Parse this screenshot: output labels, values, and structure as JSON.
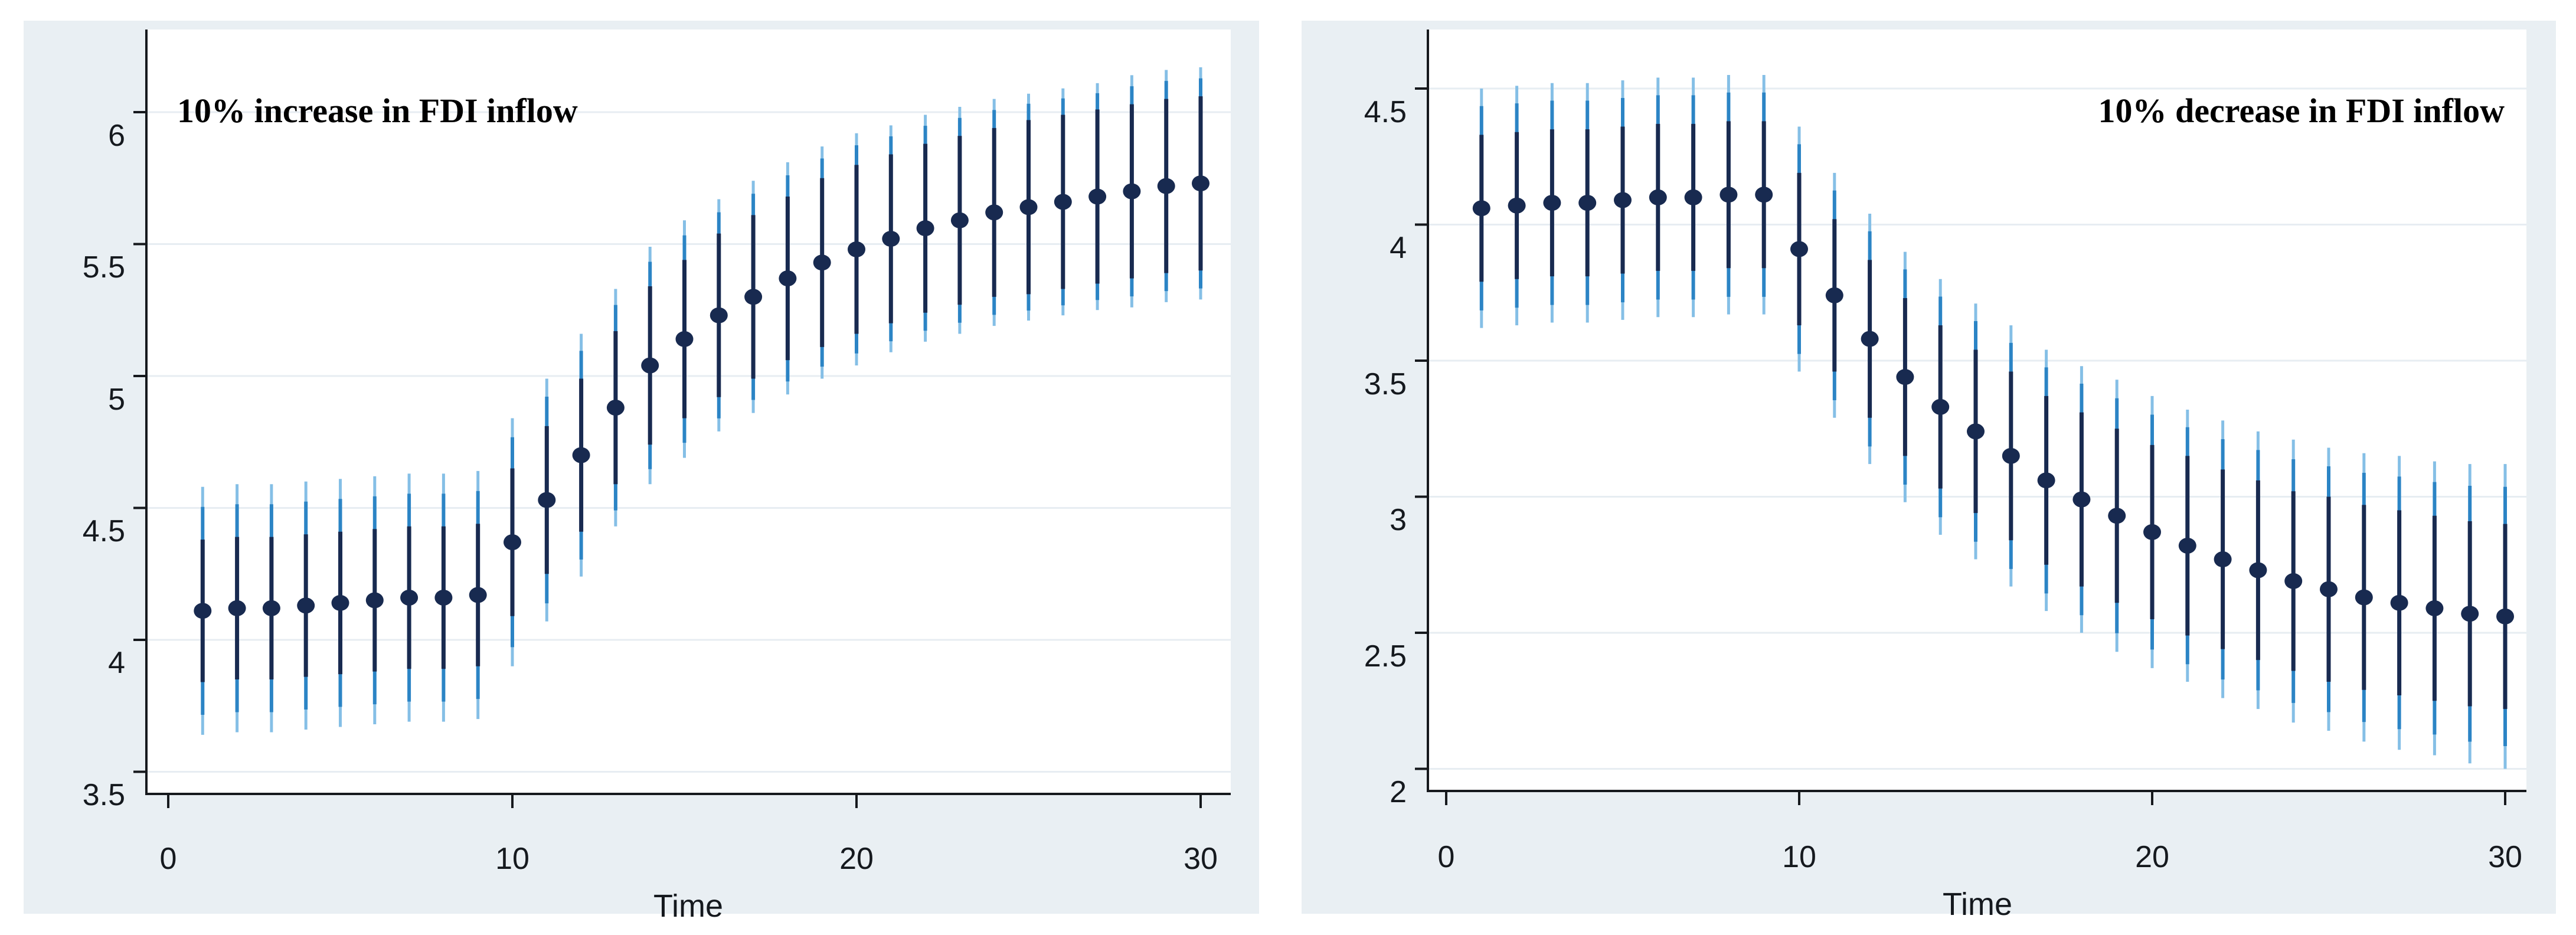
{
  "figure": {
    "background": "#ffffff",
    "panel_background": "#e9eff3"
  },
  "colors": {
    "dot": "#182a50",
    "inner_bar": "#182a50",
    "mid_bar": "#2b84c5",
    "outer_bar_tip": "#85bfe6",
    "gridline": "#e7edf2",
    "axis": "#16191d",
    "text": "#15191e",
    "plot_background": "#ffffff"
  },
  "chart_data": [
    {
      "type": "scatter",
      "title": "10% increase in FDI inflow",
      "title_align": "left",
      "xlabel": "Time",
      "grid": true,
      "legend": "none",
      "x_tick_labels": [
        "0",
        "10",
        "20",
        "30"
      ],
      "x_tick_values": [
        0,
        10,
        20,
        30
      ],
      "y_tick_labels": [
        "3.5",
        "4",
        "4.5",
        "5",
        "5.5",
        "6"
      ],
      "y_tick_values": [
        3.5,
        4,
        4.5,
        5,
        5.5,
        6
      ],
      "xlim": [
        -0.65,
        30.85
      ],
      "ylim": [
        3.42,
        6.31
      ],
      "x": [
        1,
        2,
        3,
        4,
        5,
        6,
        7,
        8,
        9,
        10,
        11,
        12,
        13,
        14,
        15,
        16,
        17,
        18,
        19,
        20,
        21,
        22,
        23,
        24,
        25,
        26,
        27,
        28,
        29,
        30
      ],
      "values": [
        4.11,
        4.12,
        4.12,
        4.13,
        4.14,
        4.15,
        4.16,
        4.16,
        4.17,
        4.37,
        4.53,
        4.7,
        4.88,
        5.04,
        5.14,
        5.23,
        5.3,
        5.37,
        5.43,
        5.48,
        5.52,
        5.56,
        5.59,
        5.62,
        5.64,
        5.66,
        5.68,
        5.7,
        5.72,
        5.73
      ],
      "inner_ci_low": [
        3.84,
        3.85,
        3.85,
        3.86,
        3.87,
        3.88,
        3.89,
        3.89,
        3.9,
        4.09,
        4.25,
        4.41,
        4.59,
        4.74,
        4.84,
        4.92,
        4.99,
        5.06,
        5.11,
        5.16,
        5.2,
        5.24,
        5.27,
        5.3,
        5.31,
        5.33,
        5.35,
        5.37,
        5.39,
        5.4
      ],
      "inner_ci_high": [
        4.38,
        4.39,
        4.39,
        4.4,
        4.41,
        4.42,
        4.43,
        4.43,
        4.44,
        4.65,
        4.81,
        4.99,
        5.17,
        5.34,
        5.44,
        5.54,
        5.61,
        5.68,
        5.75,
        5.8,
        5.84,
        5.88,
        5.91,
        5.94,
        5.97,
        5.99,
        6.01,
        6.03,
        6.05,
        6.06
      ],
      "outer_ci_low": [
        3.64,
        3.65,
        3.65,
        3.66,
        3.67,
        3.68,
        3.69,
        3.69,
        3.7,
        3.9,
        4.07,
        4.24,
        4.43,
        4.59,
        4.69,
        4.79,
        4.86,
        4.93,
        4.99,
        5.04,
        5.09,
        5.13,
        5.16,
        5.19,
        5.21,
        5.23,
        5.25,
        5.26,
        5.28,
        5.29
      ],
      "outer_ci_high": [
        4.58,
        4.59,
        4.59,
        4.6,
        4.61,
        4.62,
        4.63,
        4.63,
        4.64,
        4.84,
        4.99,
        5.16,
        5.33,
        5.49,
        5.59,
        5.67,
        5.74,
        5.81,
        5.87,
        5.92,
        5.95,
        5.99,
        6.02,
        6.05,
        6.07,
        6.09,
        6.11,
        6.14,
        6.16,
        6.17
      ]
    },
    {
      "type": "scatter",
      "title": "10% decrease in FDI inflow",
      "title_align": "right",
      "xlabel": "Time",
      "grid": true,
      "legend": "none",
      "x_tick_labels": [
        "0",
        "10",
        "20",
        "30"
      ],
      "x_tick_values": [
        0,
        10,
        20,
        30
      ],
      "y_tick_labels": [
        "2",
        "2.5",
        "3",
        "3.5",
        "4",
        "4.5"
      ],
      "y_tick_values": [
        2,
        2.5,
        3,
        3.5,
        4,
        4.5
      ],
      "xlim": [
        -0.65,
        30.85
      ],
      "ylim": [
        1.92,
        4.72
      ],
      "x": [
        1,
        2,
        3,
        4,
        5,
        6,
        7,
        8,
        9,
        10,
        11,
        12,
        13,
        14,
        15,
        16,
        17,
        18,
        19,
        20,
        21,
        22,
        23,
        24,
        25,
        26,
        27,
        28,
        29,
        30
      ],
      "values": [
        4.06,
        4.07,
        4.08,
        4.08,
        4.09,
        4.1,
        4.1,
        4.11,
        4.11,
        3.91,
        3.74,
        3.58,
        3.44,
        3.33,
        3.24,
        3.15,
        3.06,
        2.99,
        2.93,
        2.87,
        2.82,
        2.77,
        2.73,
        2.69,
        2.66,
        2.63,
        2.61,
        2.59,
        2.57,
        2.56
      ],
      "inner_ci_low": [
        3.79,
        3.8,
        3.81,
        3.81,
        3.82,
        3.83,
        3.83,
        3.84,
        3.84,
        3.63,
        3.46,
        3.29,
        3.15,
        3.03,
        2.94,
        2.84,
        2.75,
        2.67,
        2.61,
        2.55,
        2.49,
        2.44,
        2.4,
        2.36,
        2.32,
        2.29,
        2.27,
        2.25,
        2.23,
        2.22
      ],
      "inner_ci_high": [
        4.33,
        4.34,
        4.35,
        4.35,
        4.36,
        4.37,
        4.37,
        4.38,
        4.38,
        4.19,
        4.02,
        3.87,
        3.73,
        3.63,
        3.54,
        3.46,
        3.37,
        3.31,
        3.25,
        3.19,
        3.15,
        3.1,
        3.06,
        3.02,
        3.0,
        2.97,
        2.95,
        2.93,
        2.91,
        2.9
      ],
      "outer_ci_low": [
        3.62,
        3.63,
        3.64,
        3.64,
        3.65,
        3.66,
        3.66,
        3.67,
        3.67,
        3.46,
        3.29,
        3.12,
        2.98,
        2.86,
        2.77,
        2.67,
        2.58,
        2.5,
        2.43,
        2.37,
        2.32,
        2.26,
        2.22,
        2.17,
        2.14,
        2.1,
        2.07,
        2.05,
        2.02,
        2.0
      ],
      "outer_ci_high": [
        4.5,
        4.51,
        4.52,
        4.52,
        4.53,
        4.54,
        4.54,
        4.55,
        4.55,
        4.36,
        4.19,
        4.04,
        3.9,
        3.8,
        3.71,
        3.63,
        3.54,
        3.48,
        3.43,
        3.37,
        3.32,
        3.28,
        3.24,
        3.21,
        3.18,
        3.16,
        3.15,
        3.13,
        3.12,
        3.12
      ]
    }
  ]
}
